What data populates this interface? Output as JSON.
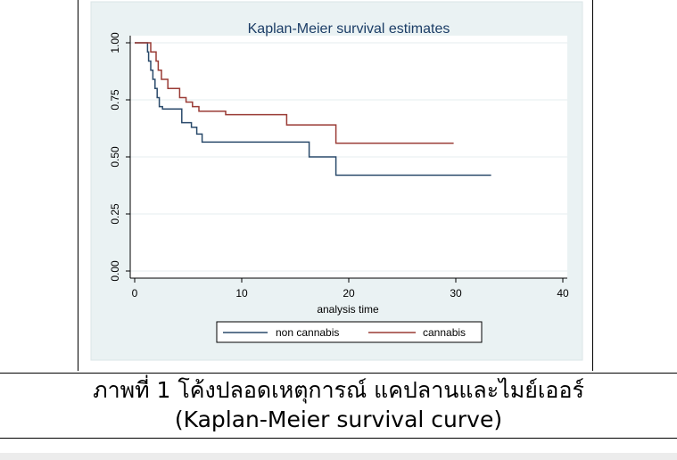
{
  "figure": {
    "caption_line1": "ภาพที่ 1 โค้งปลอดเหตุการณ์ แคปลานและไมย์เออร์",
    "caption_line2": "(Kaplan-Meier survival curve)"
  },
  "chart_data": {
    "type": "line",
    "step": true,
    "title": "Kaplan-Meier survival estimates",
    "xlabel": "analysis time",
    "ylabel": "",
    "xlim": [
      0,
      40
    ],
    "ylim": [
      0,
      1
    ],
    "x_ticks": [
      "0",
      "10",
      "20",
      "30",
      "40"
    ],
    "y_ticks": [
      "0.00",
      "0.25",
      "0.50",
      "0.75",
      "1.00"
    ],
    "grid": "horizontal",
    "legend_position": "bottom",
    "colors": {
      "plot_region_bg": "#ffffff",
      "outer_bg": "#eaf2f3",
      "title": "#1b3d66"
    },
    "series": [
      {
        "name": "non cannabis",
        "color": "#2a4a6b",
        "x": [
          0,
          1.2,
          1.3,
          1.5,
          1.7,
          1.9,
          2.1,
          2.3,
          2.6,
          4.4,
          5.3,
          5.8,
          6.3,
          16.3,
          18.8,
          33.3
        ],
        "y": [
          1.0,
          0.96,
          0.92,
          0.88,
          0.84,
          0.8,
          0.76,
          0.72,
          0.71,
          0.65,
          0.63,
          0.6,
          0.565,
          0.5,
          0.42,
          0.42
        ]
      },
      {
        "name": "cannabis",
        "color": "#9a3b35",
        "x": [
          0,
          1.5,
          2.0,
          2.2,
          2.5,
          3.1,
          4.2,
          4.8,
          5.4,
          6.0,
          8.5,
          14.2,
          18.8,
          29.8
        ],
        "y": [
          1.0,
          0.96,
          0.92,
          0.88,
          0.84,
          0.8,
          0.76,
          0.74,
          0.72,
          0.7,
          0.685,
          0.64,
          0.56,
          0.56
        ]
      }
    ]
  }
}
